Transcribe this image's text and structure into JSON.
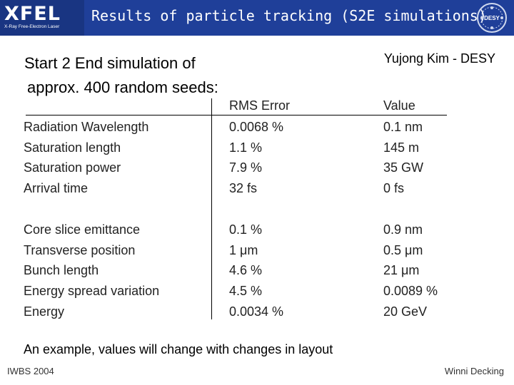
{
  "header": {
    "title": "Results of particle tracking (S2E simulations)",
    "logo_text": "XFEL",
    "logo_subtitle": "X-Ray Free-Electron Laser",
    "desy_logo_text": "DESY",
    "background_color": "#1f3f99"
  },
  "intro": {
    "line1": "Start 2 End simulation of",
    "line2": "approx. 400 random seeds:",
    "author": "Yujong Kim - DESY"
  },
  "table": {
    "headers": {
      "rms": "RMS Error",
      "value": "Value"
    },
    "rows": [
      {
        "param": "Radiation Wavelength",
        "rms": "0.0068 %",
        "value": "0.1 nm"
      },
      {
        "param": "Saturation length",
        "rms": "1.1 %",
        "value": "145 m"
      },
      {
        "param": "Saturation power",
        "rms": "7.9 %",
        "value": "35 GW"
      },
      {
        "param": "Arrival time",
        "rms": "32 fs",
        "value": "0 fs"
      },
      {
        "param": "Core slice emittance",
        "rms": "0.1 %",
        "value": "0.9 nm"
      },
      {
        "param": "Transverse position",
        "rms": "1 μm",
        "value": "0.5 μm"
      },
      {
        "param": "Bunch length",
        "rms": "4.6 %",
        "value": "21 μm"
      },
      {
        "param": "Energy spread variation",
        "rms": "4.5 %",
        "value": "0.0089 %"
      },
      {
        "param": "Energy",
        "rms": "0.0034 %",
        "value": "20 GeV"
      }
    ]
  },
  "note": "An example, values will change with changes in layout",
  "footer": {
    "left": "IWBS 2004",
    "right": "Winni Decking"
  }
}
